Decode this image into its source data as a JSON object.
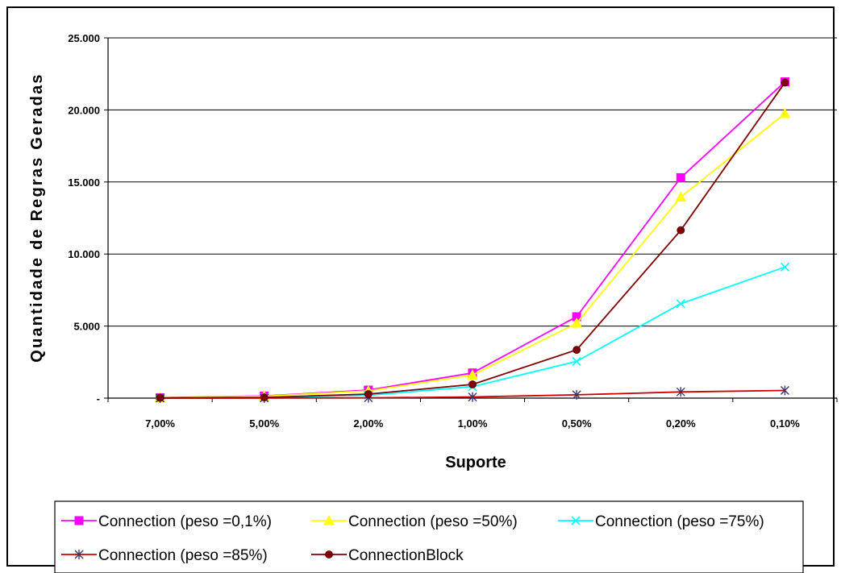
{
  "chart_data": {
    "type": "line",
    "title": "",
    "xlabel": "Suporte",
    "ylabel": "Quantidade de Regras Geradas",
    "categories": [
      "7,00%",
      "5,00%",
      "2,00%",
      "1,00%",
      "0,50%",
      "0,20%",
      "0,10%"
    ],
    "ylim": [
      0,
      25000
    ],
    "yticks": [
      0,
      5000,
      10000,
      15000,
      20000,
      25000
    ],
    "ytick_labels": [
      "-",
      "5.000",
      "10.000",
      "15.000",
      "20.000",
      "25.000"
    ],
    "grid": "horizontal",
    "legend_position": "bottom",
    "series": [
      {
        "name": "Connection (peso =0,1%)",
        "color": "#ff00ff",
        "marker": "square",
        "values": [
          30,
          150,
          560,
          1750,
          5650,
          15300,
          21950
        ]
      },
      {
        "name": "Connection (peso =50%)",
        "color": "#ffff00",
        "marker": "triangle",
        "values": [
          25,
          130,
          500,
          1600,
          5200,
          13950,
          19750
        ]
      },
      {
        "name": "Connection (peso =75%)",
        "color": "#00ffff",
        "marker": "x",
        "values": [
          5,
          30,
          200,
          800,
          2550,
          6550,
          9100
        ]
      },
      {
        "name": "Connection (peso =85%)",
        "color": "#cc0000",
        "marker": "star",
        "values": [
          0,
          10,
          20,
          80,
          230,
          430,
          530
        ]
      },
      {
        "name": "ConnectionBlock",
        "color": "#800000",
        "marker": "circle",
        "values": [
          20,
          50,
          280,
          950,
          3350,
          11650,
          21900
        ]
      }
    ]
  }
}
